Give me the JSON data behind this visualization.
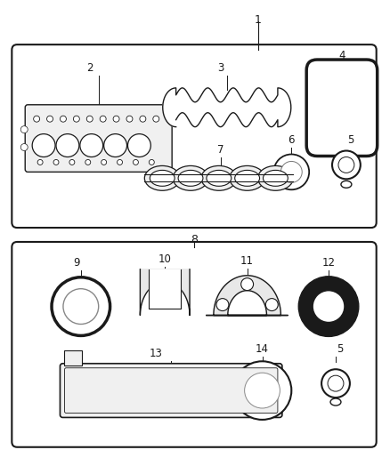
{
  "background_color": "#ffffff",
  "line_color": "#1a1a1a",
  "figsize": [
    4.38,
    5.33
  ],
  "dpi": 100
}
